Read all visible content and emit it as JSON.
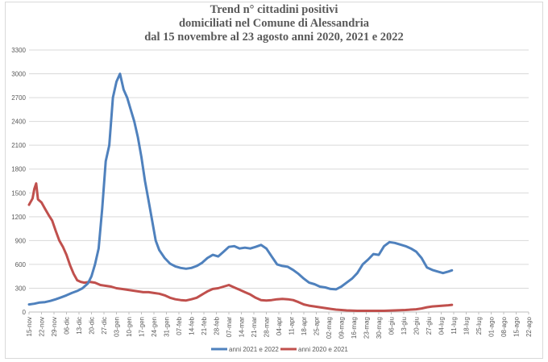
{
  "chart_data": {
    "type": "line",
    "title_lines": [
      "Trend n° cittadini positivi",
      "domiciliati nel Comune di Alessandria",
      "dal 15 novembre al 23 agosto anni 2020, 2021 e 2022"
    ],
    "xlabel": "",
    "ylabel": "",
    "ylim": [
      0,
      3300
    ],
    "yticks": [
      0,
      300,
      600,
      900,
      1200,
      1500,
      1800,
      2100,
      2400,
      2700,
      3000,
      3300
    ],
    "x_tick_labels": [
      "15-nov",
      "22-nov",
      "29-nov",
      "06-dic",
      "13-dic",
      "20-dic",
      "27-dic",
      "03-gen",
      "10-gen",
      "17-gen",
      "24-gen",
      "31-gen",
      "07-feb",
      "14-feb",
      "21-feb",
      "28-feb",
      "07-mar",
      "14-mar",
      "21-mar",
      "28-mar",
      "04-apr",
      "11-apr",
      "18-apr",
      "25-apr",
      "02-mag",
      "09-mag",
      "16-mag",
      "23-mag",
      "30-mag",
      "06-giu",
      "13-giu",
      "20-giu",
      "27-giu",
      "04-lug",
      "11-lug",
      "18-lug",
      "25-lug",
      "01-ago",
      "08-ago",
      "15-ago",
      "22-ago"
    ],
    "grid": true,
    "legend_position": "bottom",
    "series": [
      {
        "name": "anni 2021 e 2022",
        "color": "#4f81bd",
        "points": [
          [
            0,
            95
          ],
          [
            3,
            105
          ],
          [
            6,
            120
          ],
          [
            9,
            125
          ],
          [
            12,
            140
          ],
          [
            15,
            160
          ],
          [
            18,
            185
          ],
          [
            21,
            210
          ],
          [
            24,
            240
          ],
          [
            27,
            265
          ],
          [
            30,
            300
          ],
          [
            33,
            360
          ],
          [
            35,
            450
          ],
          [
            37,
            600
          ],
          [
            39,
            800
          ],
          [
            41,
            1300
          ],
          [
            43,
            1900
          ],
          [
            45,
            2100
          ],
          [
            47,
            2700
          ],
          [
            49,
            2900
          ],
          [
            51,
            3000
          ],
          [
            53,
            2800
          ],
          [
            55,
            2700
          ],
          [
            57,
            2550
          ],
          [
            59,
            2400
          ],
          [
            61,
            2200
          ],
          [
            63,
            1950
          ],
          [
            65,
            1650
          ],
          [
            67,
            1400
          ],
          [
            69,
            1150
          ],
          [
            71,
            900
          ],
          [
            73,
            780
          ],
          [
            76,
            680
          ],
          [
            79,
            610
          ],
          [
            82,
            575
          ],
          [
            85,
            555
          ],
          [
            88,
            545
          ],
          [
            91,
            555
          ],
          [
            94,
            580
          ],
          [
            97,
            620
          ],
          [
            100,
            680
          ],
          [
            103,
            720
          ],
          [
            106,
            700
          ],
          [
            109,
            760
          ],
          [
            112,
            820
          ],
          [
            115,
            830
          ],
          [
            118,
            800
          ],
          [
            121,
            810
          ],
          [
            124,
            800
          ],
          [
            127,
            820
          ],
          [
            130,
            845
          ],
          [
            133,
            800
          ],
          [
            136,
            700
          ],
          [
            139,
            600
          ],
          [
            142,
            580
          ],
          [
            145,
            570
          ],
          [
            148,
            530
          ],
          [
            151,
            480
          ],
          [
            154,
            420
          ],
          [
            157,
            370
          ],
          [
            160,
            350
          ],
          [
            163,
            320
          ],
          [
            166,
            310
          ],
          [
            169,
            290
          ],
          [
            172,
            285
          ],
          [
            175,
            320
          ],
          [
            178,
            370
          ],
          [
            181,
            420
          ],
          [
            184,
            490
          ],
          [
            187,
            600
          ],
          [
            190,
            660
          ],
          [
            193,
            730
          ],
          [
            196,
            720
          ],
          [
            199,
            830
          ],
          [
            202,
            880
          ],
          [
            205,
            870
          ],
          [
            208,
            850
          ],
          [
            211,
            830
          ],
          [
            214,
            800
          ],
          [
            217,
            760
          ],
          [
            220,
            680
          ],
          [
            223,
            560
          ],
          [
            226,
            530
          ],
          [
            229,
            510
          ],
          [
            232,
            490
          ],
          [
            235,
            510
          ],
          [
            237,
            525
          ]
        ]
      },
      {
        "name": "anni 2020 e 2021",
        "color": "#c0504d",
        "points": [
          [
            0,
            1350
          ],
          [
            2,
            1430
          ],
          [
            3,
            1550
          ],
          [
            4,
            1620
          ],
          [
            5,
            1420
          ],
          [
            7,
            1380
          ],
          [
            9,
            1300
          ],
          [
            11,
            1220
          ],
          [
            13,
            1150
          ],
          [
            15,
            1020
          ],
          [
            17,
            900
          ],
          [
            19,
            820
          ],
          [
            21,
            720
          ],
          [
            23,
            590
          ],
          [
            25,
            480
          ],
          [
            27,
            400
          ],
          [
            29,
            380
          ],
          [
            31,
            370
          ],
          [
            34,
            380
          ],
          [
            37,
            370
          ],
          [
            40,
            340
          ],
          [
            43,
            330
          ],
          [
            46,
            320
          ],
          [
            49,
            300
          ],
          [
            52,
            290
          ],
          [
            55,
            280
          ],
          [
            58,
            270
          ],
          [
            61,
            260
          ],
          [
            64,
            250
          ],
          [
            67,
            250
          ],
          [
            70,
            240
          ],
          [
            73,
            230
          ],
          [
            76,
            210
          ],
          [
            79,
            180
          ],
          [
            82,
            160
          ],
          [
            85,
            150
          ],
          [
            88,
            145
          ],
          [
            91,
            160
          ],
          [
            94,
            180
          ],
          [
            97,
            220
          ],
          [
            100,
            260
          ],
          [
            103,
            290
          ],
          [
            106,
            300
          ],
          [
            109,
            320
          ],
          [
            112,
            340
          ],
          [
            115,
            310
          ],
          [
            118,
            280
          ],
          [
            121,
            250
          ],
          [
            124,
            220
          ],
          [
            127,
            180
          ],
          [
            130,
            150
          ],
          [
            133,
            145
          ],
          [
            136,
            150
          ],
          [
            139,
            160
          ],
          [
            142,
            165
          ],
          [
            145,
            160
          ],
          [
            148,
            150
          ],
          [
            151,
            125
          ],
          [
            154,
            95
          ],
          [
            157,
            80
          ],
          [
            160,
            70
          ],
          [
            163,
            60
          ],
          [
            166,
            50
          ],
          [
            169,
            40
          ],
          [
            172,
            30
          ],
          [
            175,
            25
          ],
          [
            178,
            20
          ],
          [
            181,
            18
          ],
          [
            184,
            15
          ],
          [
            187,
            15
          ],
          [
            190,
            15
          ],
          [
            193,
            15
          ],
          [
            196,
            15
          ],
          [
            199,
            15
          ],
          [
            202,
            18
          ],
          [
            205,
            20
          ],
          [
            208,
            22
          ],
          [
            211,
            25
          ],
          [
            214,
            30
          ],
          [
            217,
            35
          ],
          [
            220,
            45
          ],
          [
            223,
            60
          ],
          [
            226,
            70
          ],
          [
            229,
            75
          ],
          [
            232,
            80
          ],
          [
            235,
            85
          ],
          [
            237,
            90
          ]
        ]
      }
    ]
  }
}
